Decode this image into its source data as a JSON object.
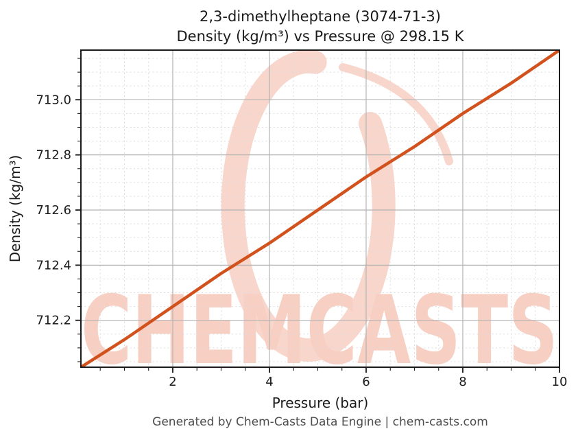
{
  "footer": {
    "text": "Generated by Chem-Casts Data Engine | chem-casts.com"
  },
  "watermark": {
    "text": "CHEMCASTS",
    "text_color": "#f8cfc3",
    "ring_color": "#f9d6cb"
  },
  "colors": {
    "line": "#d2521e",
    "grid_major": "#b3b3b3",
    "grid_minor": "#dcdcdc",
    "spine": "#1a1a1a",
    "tick_label": "#1a1a1a",
    "footer_text": "#4d4d4d"
  },
  "chart_data": {
    "type": "line",
    "title": "2,3-dimethylheptane (3074-71-3)",
    "subtitle": "Density (kg/m³) vs Pressure @ 298.15 K",
    "xlabel": "Pressure (bar)",
    "ylabel": "Density (kg/m³)",
    "xlim": [
      0.1,
      10
    ],
    "ylim": [
      712.03,
      713.18
    ],
    "x_major_ticks": [
      2,
      4,
      6,
      8,
      10
    ],
    "x_tick_labels": [
      "2",
      "4",
      "6",
      "8",
      "10"
    ],
    "x_minor_step": 0.5,
    "y_major_ticks": [
      712.2,
      712.4,
      712.6,
      712.8,
      713.0
    ],
    "y_tick_labels": [
      "712.2",
      "712.4",
      "712.6",
      "712.8",
      "713.0"
    ],
    "y_minor_step": 0.05,
    "grid": {
      "major": "solid",
      "minor": "dashed"
    },
    "legend": "none",
    "series": [
      {
        "name": "Density vs Pressure at 298.15 K",
        "color": "#d2521e",
        "x": [
          0.1,
          1,
          2,
          3,
          4,
          5,
          6,
          7,
          8,
          9,
          10
        ],
        "y": [
          712.03,
          712.13,
          712.25,
          712.37,
          712.48,
          712.6,
          712.72,
          712.83,
          712.95,
          713.06,
          713.18
        ]
      }
    ]
  }
}
